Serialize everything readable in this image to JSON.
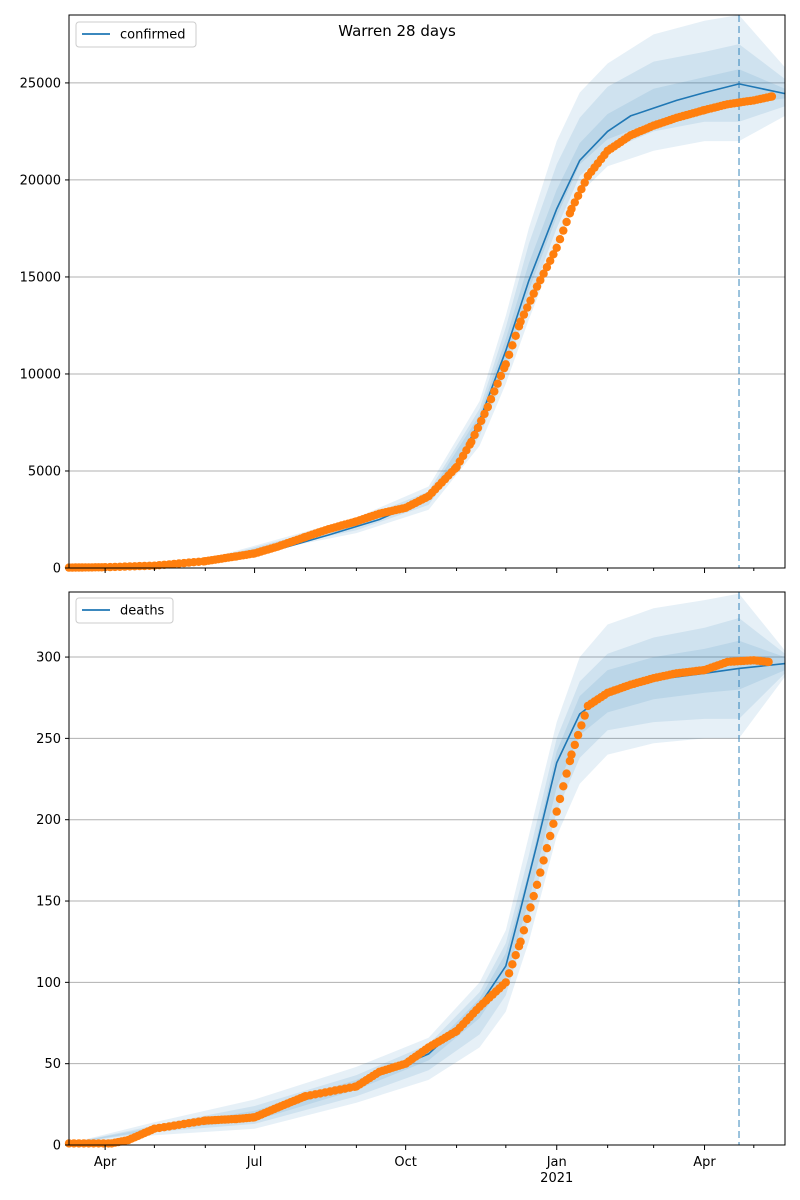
{
  "title": "Warren 28 days",
  "colors": {
    "model": "#1f77b4",
    "observed": "#ff7f0e",
    "band": "#1f77b4",
    "grid": "#b0b0b0",
    "cutoff": "#1f77b4"
  },
  "x_axis": {
    "ticks": [
      "Apr",
      "Jul",
      "Oct",
      "Jan",
      "Apr"
    ],
    "year_label": "2021"
  },
  "chart_data": [
    {
      "type": "line",
      "legend": "confirmed",
      "legend_position": "top-left",
      "grid": true,
      "ylim": [
        0,
        28500
      ],
      "yticks": [
        0,
        5000,
        10000,
        15000,
        20000,
        25000
      ],
      "date_range": [
        "2020-03-10",
        "2021-05-20"
      ],
      "forecast_cutoff": "2021-04-22",
      "model_line": {
        "dates": [
          "2020-03-10",
          "2020-04-15",
          "2020-05-15",
          "2020-06-15",
          "2020-07-15",
          "2020-08-15",
          "2020-09-15",
          "2020-10-15",
          "2020-11-01",
          "2020-11-15",
          "2020-12-01",
          "2020-12-15",
          "2021-01-01",
          "2021-01-15",
          "2021-02-01",
          "2021-02-15",
          "2021-03-01",
          "2021-03-15",
          "2021-04-01",
          "2021-04-22",
          "2021-05-20"
        ],
        "values": [
          30,
          100,
          250,
          500,
          950,
          1700,
          2500,
          3600,
          5200,
          7600,
          11200,
          14800,
          18500,
          21000,
          22500,
          23300,
          23700,
          24100,
          24500,
          24950,
          24450
        ]
      },
      "band_outer": {
        "dates": [
          "2020-03-10",
          "2020-06-01",
          "2020-09-01",
          "2020-10-15",
          "2020-11-15",
          "2020-12-01",
          "2020-12-15",
          "2021-01-01",
          "2021-01-15",
          "2021-02-01",
          "2021-03-01",
          "2021-04-01",
          "2021-04-22",
          "2021-05-20"
        ],
        "upper": [
          30,
          450,
          2600,
          4200,
          8600,
          13000,
          17500,
          22000,
          24500,
          26000,
          27500,
          28200,
          28500,
          25800
        ],
        "lower": [
          30,
          250,
          1800,
          3000,
          6300,
          9500,
          12800,
          16500,
          19300,
          20700,
          21500,
          22000,
          22000,
          23300
        ]
      },
      "band_mid": {
        "dates": [
          "2020-03-10",
          "2020-06-01",
          "2020-09-01",
          "2020-10-15",
          "2020-11-15",
          "2020-12-01",
          "2020-12-15",
          "2021-01-01",
          "2021-01-15",
          "2021-02-01",
          "2021-03-01",
          "2021-04-01",
          "2021-04-22",
          "2021-05-20"
        ],
        "upper": [
          30,
          400,
          2450,
          3950,
          8200,
          12400,
          16700,
          20800,
          23200,
          24800,
          26100,
          26600,
          27000,
          25200
        ],
        "lower": [
          30,
          300,
          1950,
          3250,
          6800,
          10100,
          13700,
          17500,
          20200,
          21500,
          22500,
          23000,
          23000,
          23800
        ]
      },
      "band_inner": {
        "dates": [
          "2020-03-10",
          "2020-06-01",
          "2020-09-01",
          "2020-10-15",
          "2020-11-15",
          "2020-12-01",
          "2020-12-15",
          "2021-01-01",
          "2021-01-15",
          "2021-02-01",
          "2021-03-01",
          "2021-04-01",
          "2021-04-22",
          "2021-05-20"
        ],
        "upper": [
          30,
          360,
          2300,
          3750,
          7900,
          11800,
          15700,
          19500,
          21900,
          23400,
          24700,
          25300,
          25700,
          24700
        ],
        "lower": [
          30,
          330,
          2100,
          3450,
          7200,
          10600,
          14300,
          18100,
          20800,
          22100,
          23000,
          23600,
          23900,
          24200
        ]
      },
      "observed": {
        "dates": [
          "2020-03-10",
          "2020-04-01",
          "2020-05-01",
          "2020-06-01",
          "2020-06-20",
          "2020-07-01",
          "2020-07-15",
          "2020-08-01",
          "2020-08-15",
          "2020-09-01",
          "2020-09-15",
          "2020-10-01",
          "2020-10-15",
          "2020-11-01",
          "2020-11-10",
          "2020-11-20",
          "2020-12-01",
          "2020-12-10",
          "2020-12-20",
          "2021-01-01",
          "2021-01-10",
          "2021-01-20",
          "2021-02-01",
          "2021-02-15",
          "2021-03-01",
          "2021-03-15",
          "2021-04-01",
          "2021-04-15",
          "2021-05-01",
          "2021-05-12"
        ],
        "values": [
          20,
          40,
          120,
          350,
          600,
          750,
          1100,
          1600,
          2000,
          2400,
          2800,
          3100,
          3700,
          5200,
          6500,
          8300,
          10500,
          12700,
          14500,
          16500,
          18500,
          20200,
          21500,
          22300,
          22800,
          23200,
          23600,
          23900,
          24100,
          24300
        ]
      }
    },
    {
      "type": "line",
      "legend": "deaths",
      "legend_position": "top-left",
      "grid": true,
      "ylim": [
        0,
        340
      ],
      "yticks": [
        0,
        50,
        100,
        150,
        200,
        250,
        300
      ],
      "date_range": [
        "2020-03-10",
        "2021-05-20"
      ],
      "forecast_cutoff": "2021-04-22",
      "model_line": {
        "dates": [
          "2020-03-10",
          "2020-04-10",
          "2020-05-01",
          "2020-06-01",
          "2020-07-01",
          "2020-08-01",
          "2020-09-01",
          "2020-10-01",
          "2020-10-15",
          "2020-11-01",
          "2020-11-15",
          "2020-12-01",
          "2020-12-10",
          "2020-12-20",
          "2021-01-01",
          "2021-01-15",
          "2021-02-01",
          "2021-02-15",
          "2021-03-01",
          "2021-04-01",
          "2021-04-22",
          "2021-05-20"
        ],
        "values": [
          1,
          3,
          10,
          15,
          18,
          28,
          37,
          50,
          56,
          72,
          86,
          110,
          145,
          185,
          235,
          265,
          278,
          283,
          286,
          290,
          293,
          296
        ]
      },
      "band_outer": {
        "dates": [
          "2020-03-10",
          "2020-05-01",
          "2020-07-01",
          "2020-09-01",
          "2020-10-15",
          "2020-11-15",
          "2020-12-01",
          "2020-12-15",
          "2021-01-01",
          "2021-01-15",
          "2021-02-01",
          "2021-03-01",
          "2021-04-01",
          "2021-04-22",
          "2021-05-20"
        ],
        "upper": [
          1,
          14,
          28,
          48,
          66,
          100,
          132,
          190,
          260,
          300,
          320,
          330,
          335,
          339,
          304
        ],
        "lower": [
          1,
          6,
          10,
          26,
          40,
          60,
          82,
          125,
          190,
          222,
          240,
          247,
          250,
          250,
          288
        ]
      },
      "band_mid": {
        "dates": [
          "2020-03-10",
          "2020-05-01",
          "2020-07-01",
          "2020-09-01",
          "2020-10-15",
          "2020-11-15",
          "2020-12-01",
          "2020-12-15",
          "2021-01-01",
          "2021-01-15",
          "2021-02-01",
          "2021-03-01",
          "2021-04-01",
          "2021-04-22",
          "2021-05-20"
        ],
        "upper": [
          1,
          12,
          24,
          43,
          62,
          94,
          124,
          178,
          250,
          285,
          302,
          312,
          318,
          324,
          302
        ],
        "lower": [
          1,
          8,
          13,
          30,
          46,
          68,
          92,
          140,
          205,
          238,
          255,
          260,
          262,
          262,
          290
        ]
      },
      "band_inner": {
        "dates": [
          "2020-03-10",
          "2020-05-01",
          "2020-07-01",
          "2020-09-01",
          "2020-10-15",
          "2020-11-15",
          "2020-12-01",
          "2020-12-15",
          "2021-01-01",
          "2021-01-15",
          "2021-02-01",
          "2021-03-01",
          "2021-04-01",
          "2021-04-22",
          "2021-05-20"
        ],
        "upper": [
          1,
          11,
          21,
          40,
          58,
          90,
          118,
          168,
          242,
          276,
          292,
          300,
          305,
          310,
          300
        ],
        "lower": [
          1,
          9,
          15,
          34,
          52,
          78,
          102,
          150,
          220,
          252,
          266,
          274,
          278,
          280,
          292
        ]
      },
      "observed": {
        "dates": [
          "2020-03-10",
          "2020-04-05",
          "2020-04-15",
          "2020-05-01",
          "2020-06-01",
          "2020-06-20",
          "2020-07-01",
          "2020-07-15",
          "2020-08-01",
          "2020-09-01",
          "2020-09-15",
          "2020-10-01",
          "2020-10-15",
          "2020-11-01",
          "2020-11-15",
          "2020-12-01",
          "2020-12-10",
          "2020-12-20",
          "2021-01-01",
          "2021-01-10",
          "2021-01-20",
          "2021-02-01",
          "2021-02-15",
          "2021-03-01",
          "2021-03-15",
          "2021-04-01",
          "2021-04-15",
          "2021-05-01",
          "2021-05-10"
        ],
        "values": [
          1,
          1,
          3,
          10,
          15,
          16,
          17,
          23,
          30,
          36,
          45,
          50,
          60,
          70,
          85,
          100,
          125,
          160,
          205,
          240,
          270,
          278,
          283,
          287,
          290,
          292,
          297,
          298,
          297
        ]
      }
    }
  ]
}
